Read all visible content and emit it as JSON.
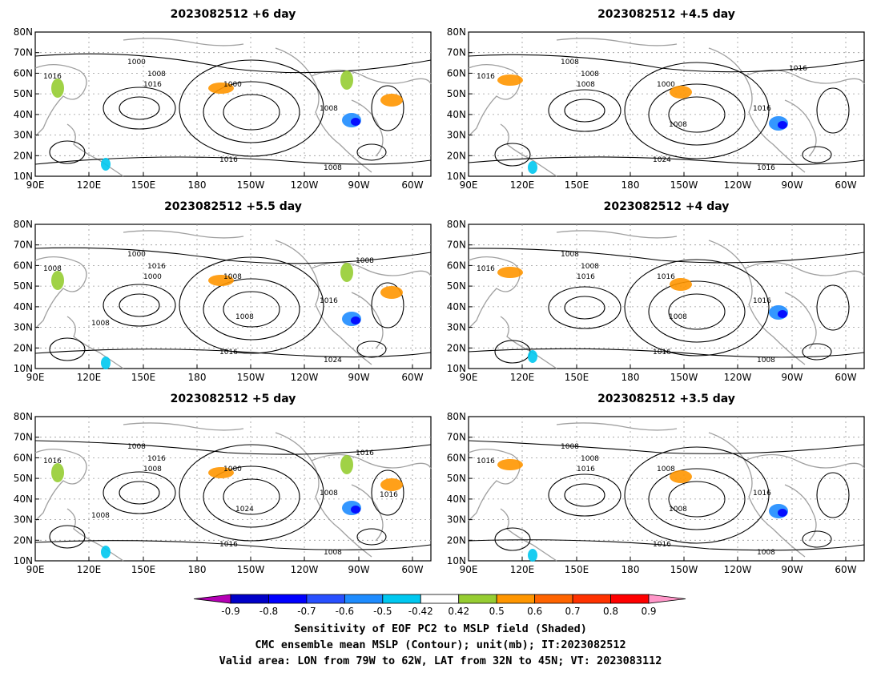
{
  "panels": [
    {
      "title": "2023082512  +6 day",
      "contour_labels": [
        "1000",
        "1016",
        "1008",
        "1016",
        "1000",
        "1008",
        "1016",
        "1008"
      ]
    },
    {
      "title": "2023082512  +4.5 day",
      "contour_labels": [
        "1008",
        "1016",
        "1008",
        "1008",
        "1000",
        "1016",
        "1024",
        "1016",
        "1008",
        "1016"
      ]
    },
    {
      "title": "2023082512  +5.5 day",
      "contour_labels": [
        "1000",
        "1008",
        "1016",
        "1000",
        "1008",
        "1016",
        "1016",
        "1024",
        "1008",
        "1008",
        "1008"
      ]
    },
    {
      "title": "2023082512  +4 day",
      "contour_labels": [
        "1008",
        "1016",
        "1008",
        "1016",
        "1016",
        "1016",
        "1016",
        "1008",
        "1008"
      ]
    },
    {
      "title": "2023082512  +5 day",
      "contour_labels": [
        "1008",
        "1016",
        "1016",
        "1008",
        "1000",
        "1008",
        "1016",
        "1008",
        "1024",
        "1016",
        "1008",
        "1016"
      ]
    },
    {
      "title": "2023082512  +3.5 day",
      "contour_labels": [
        "1008",
        "1016",
        "1008",
        "1016",
        "1008",
        "1016",
        "1016",
        "1008",
        "1008"
      ]
    }
  ],
  "lat_ticks": [
    "80N",
    "70N",
    "60N",
    "50N",
    "40N",
    "30N",
    "20N",
    "10N"
  ],
  "lon_ticks": [
    "90E",
    "120E",
    "150E",
    "180",
    "150W",
    "120W",
    "90W",
    "60W"
  ],
  "colorbar": {
    "labels": [
      "-0.9",
      "-0.8",
      "-0.7",
      "-0.6",
      "-0.5",
      "-0.42",
      "0.42",
      "0.5",
      "0.6",
      "0.7",
      "0.8",
      "0.9"
    ],
    "colors": [
      "#b400b4",
      "#0000c8",
      "#0000ff",
      "#2850ff",
      "#1e8cff",
      "#00c8f0",
      "#ffffff",
      "#96cd32",
      "#ff9600",
      "#ff6400",
      "#ff3200",
      "#ff0000",
      "#ff96c8"
    ]
  },
  "caption": {
    "line1": "Sensitivity of EOF PC2 to MSLP field (Shaded)",
    "line2": "CMC ensemble mean MSLP (Contour); unit(mb); IT:2023082512",
    "line3": "Valid area: LON from 79W to 62W, LAT from 32N to 45N; VT: 2023083112"
  }
}
